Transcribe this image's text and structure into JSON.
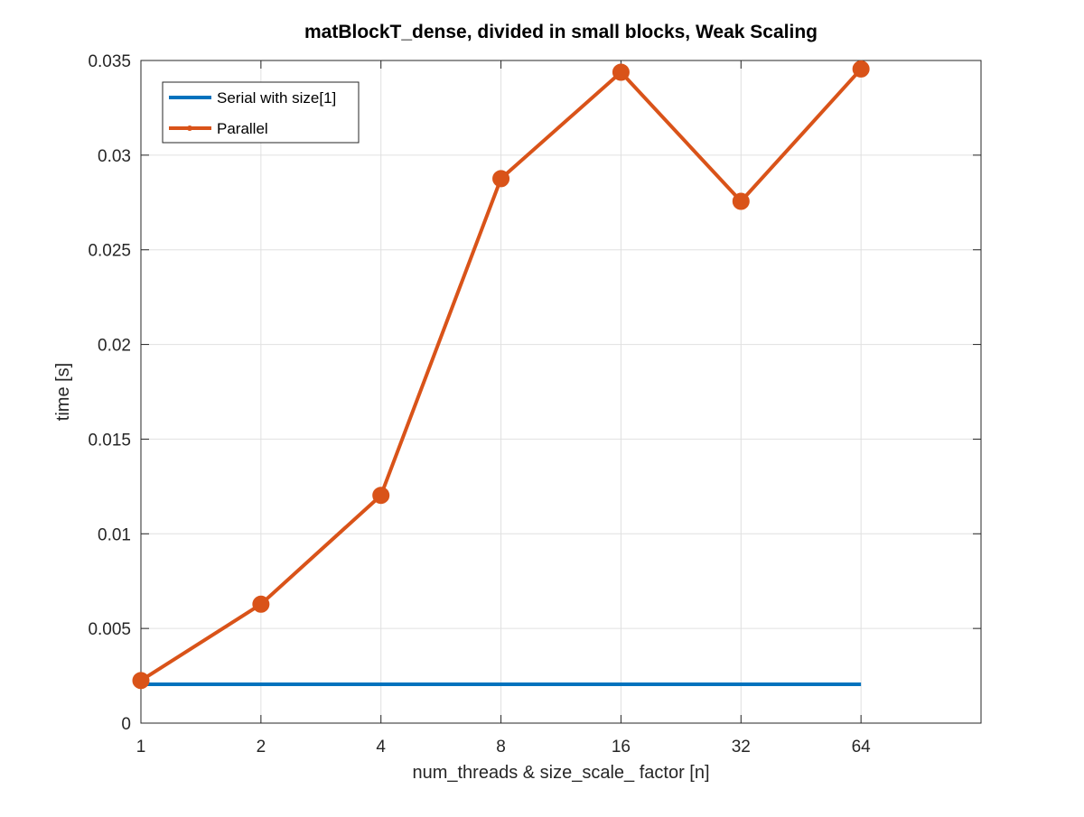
{
  "chart_data": {
    "type": "line",
    "title": "matBlockT_dense, divided in small blocks, Weak Scaling",
    "xlabel": "num_threads & size_scale_ factor [n]",
    "ylabel": "time [s]",
    "x_scale": "log2",
    "x": [
      1,
      2,
      4,
      8,
      16,
      32,
      64
    ],
    "x_tick_labels": [
      "1",
      "2",
      "4",
      "8",
      "16",
      "32",
      "64"
    ],
    "xlim": [
      1,
      128
    ],
    "y_tick_labels": [
      "0",
      "0.005",
      "0.01",
      "0.015",
      "0.02",
      "0.025",
      "0.03",
      "0.035"
    ],
    "y_ticks": [
      0,
      0.005,
      0.01,
      0.015,
      0.02,
      0.025,
      0.03,
      0.035
    ],
    "ylim": [
      0,
      0.035
    ],
    "grid": true,
    "legend_placement": "top-left",
    "series": [
      {
        "name": "Serial with size[1]",
        "color": "#0072BD",
        "marker": "none",
        "values": [
          0.00205,
          0.00205,
          0.00205,
          0.00205,
          0.00205,
          0.00205,
          0.00205
        ]
      },
      {
        "name": "Parallel",
        "color": "#D95319",
        "marker": "circle",
        "values": [
          0.00225,
          0.00628,
          0.01203,
          0.02876,
          0.03438,
          0.02756,
          0.03455
        ]
      }
    ]
  }
}
